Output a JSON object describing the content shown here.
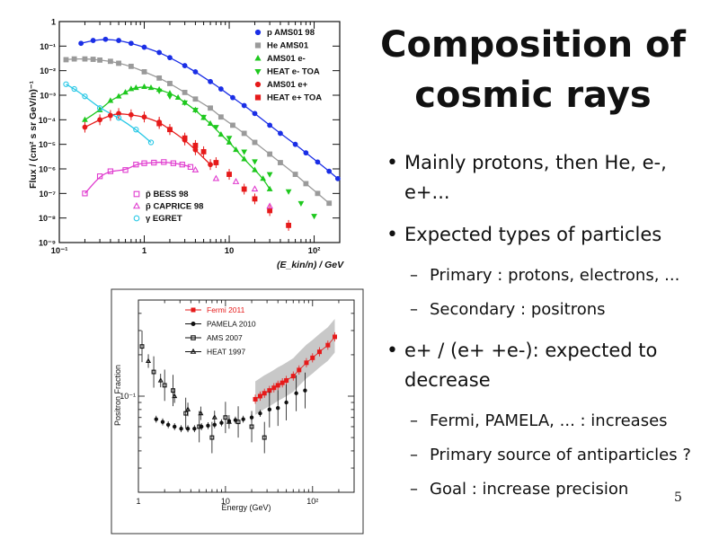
{
  "slide": {
    "title_line1": "Composition of",
    "title_line2": "cosmic rays",
    "number": "5",
    "bullets": [
      {
        "text": "Mainly protons, then He, e-, e+...",
        "sub": []
      },
      {
        "text": "Expected types of particles",
        "sub": [
          "Primary : protons, electrons, ...",
          "Secondary : positrons"
        ]
      },
      {
        "text": "e+ / (e+ +e-): expected to decrease",
        "sub": [
          "Fermi, PAMELA, ... : increases",
          "Primary source of antiparticles ?",
          "Goal : increase precision"
        ]
      }
    ]
  },
  "chart_data": [
    {
      "type": "scatter",
      "xlabel": "(E_kin/n) / GeV",
      "ylabel": "Flux / (cm² s sr GeV/n)⁻¹",
      "xscale": "log",
      "yscale": "log",
      "xlim": [
        0.1,
        200
      ],
      "ylim": [
        1e-09,
        1
      ],
      "x_ticks": [
        "10⁻¹",
        "1",
        "10",
        "10²"
      ],
      "y_ticks": [
        "1",
        "10⁻¹",
        "10⁻²",
        "10⁻³",
        "10⁻⁴",
        "10⁻⁵",
        "10⁻⁶",
        "10⁻⁷",
        "10⁻⁸",
        "10⁻⁹"
      ],
      "legend_placement": "top-right",
      "legend_lower_placement": "bottom-left",
      "series": [
        {
          "name": "p AMS01 98",
          "marker": "circle",
          "color": "#1a2ee6",
          "legend": "upper",
          "x": [
            0.18,
            0.25,
            0.35,
            0.5,
            0.7,
            1,
            1.5,
            2,
            3,
            4,
            6,
            8,
            11,
            15,
            20,
            30,
            40,
            60,
            80,
            110,
            150,
            190
          ],
          "y": [
            0.13,
            0.17,
            0.19,
            0.17,
            0.13,
            0.09,
            0.055,
            0.034,
            0.016,
            0.009,
            0.0036,
            0.0018,
            0.0008,
            0.00038,
            0.00018,
            6e-05,
            2.8e-05,
            1e-05,
            4.5e-06,
            1.9e-06,
            8e-07,
            4e-07
          ]
        },
        {
          "name": "He AMS01",
          "marker": "square",
          "color": "#9a9a9a",
          "legend": "upper",
          "x": [
            0.12,
            0.15,
            0.2,
            0.25,
            0.3,
            0.4,
            0.5,
            0.7,
            1,
            1.5,
            2,
            3,
            4,
            6,
            8,
            11,
            15,
            20,
            30,
            40,
            60,
            80,
            110,
            150
          ],
          "y": [
            0.028,
            0.03,
            0.03,
            0.029,
            0.027,
            0.024,
            0.02,
            0.015,
            0.009,
            0.005,
            0.003,
            0.0013,
            0.0007,
            0.0003,
            0.00013,
            6e-05,
            2.8e-05,
            1.2e-05,
            4e-06,
            1.8e-06,
            6e-07,
            2.5e-07,
            1e-07,
            4e-08
          ]
        },
        {
          "name": "AMS01 e-",
          "marker": "triangle-up",
          "color": "#1ec81e",
          "legend": "upper",
          "x": [
            0.2,
            0.3,
            0.4,
            0.5,
            0.6,
            0.7,
            0.8,
            1,
            1.2,
            1.5,
            2,
            2.5,
            3,
            4,
            5,
            6,
            8,
            10,
            12,
            15,
            20,
            25,
            30
          ],
          "y": [
            0.0001,
            0.00025,
            0.0006,
            0.0009,
            0.0013,
            0.0018,
            0.002,
            0.0022,
            0.002,
            0.0017,
            0.0012,
            0.0008,
            0.0005,
            0.00025,
            0.00012,
            7e-05,
            2.5e-05,
            1.2e-05,
            6e-06,
            2.5e-06,
            9e-07,
            4e-07,
            1.5e-07
          ]
        },
        {
          "name": "HEAT e- TOA",
          "marker": "triangle-down",
          "color": "#1ec81e",
          "legend": "upper",
          "x": [
            1.5,
            2,
            3,
            4,
            5,
            7,
            10,
            15,
            20,
            30,
            50,
            70,
            100
          ],
          "y": [
            0.0015,
            0.0009,
            0.0005,
            0.00025,
            0.00013,
            5e-05,
            1.8e-05,
            5e-06,
            2e-06,
            6e-07,
            1.2e-07,
            4e-08,
            1.2e-08
          ]
        },
        {
          "name": "AMS01 e+",
          "marker": "circle",
          "color": "#e61a1a",
          "legend": "upper",
          "x": [
            0.2,
            0.3,
            0.4,
            0.5,
            0.7,
            1,
            1.5,
            2,
            3,
            4,
            6
          ],
          "y": [
            5e-05,
            0.0001,
            0.00015,
            0.00018,
            0.00016,
            0.00013,
            8e-05,
            4e-05,
            1.5e-05,
            6e-06,
            1.5e-06
          ]
        },
        {
          "name": "HEAT e+ TOA",
          "marker": "square",
          "color": "#e61a1a",
          "legend": "upper",
          "x": [
            1.5,
            2,
            3,
            4,
            5,
            7,
            10,
            15,
            20,
            30,
            50
          ],
          "y": [
            7e-05,
            4e-05,
            1.8e-05,
            9e-06,
            5e-06,
            1.8e-06,
            6e-07,
            1.5e-07,
            6e-08,
            2e-08,
            5e-09
          ]
        },
        {
          "name": "p̄ BESS 98",
          "marker": "square-open",
          "color": "#e03ccf",
          "legend": "lower",
          "x": [
            0.2,
            0.3,
            0.4,
            0.6,
            0.8,
            1,
            1.3,
            1.7,
            2.2,
            2.8,
            3.5
          ],
          "y": [
            1e-07,
            5e-07,
            8e-07,
            9e-07,
            1.5e-06,
            1.7e-06,
            1.8e-06,
            1.9e-06,
            1.7e-06,
            1.5e-06,
            1.2e-06
          ]
        },
        {
          "name": "p̄ CAPRICE 98",
          "marker": "triangle-open",
          "color": "#e03ccf",
          "legend": "lower",
          "x": [
            4,
            7,
            12,
            20,
            30
          ],
          "y": [
            9e-07,
            4e-07,
            3e-07,
            1.5e-07,
            3e-08
          ]
        },
        {
          "name": "γ EGRET",
          "marker": "circle-open",
          "color": "#28c8e6",
          "legend": "lower",
          "x": [
            0.12,
            0.15,
            0.2,
            0.3,
            0.5,
            0.8,
            1.2
          ],
          "y": [
            0.0028,
            0.0018,
            0.0009,
            0.0003,
            0.00012,
            4e-05,
            1.2e-05
          ]
        }
      ]
    },
    {
      "type": "scatter",
      "xlabel": "Energy (GeV)",
      "ylabel": "Positron Fraction",
      "xscale": "log",
      "yscale": "log",
      "xlim": [
        1,
        300
      ],
      "ylim": [
        0.02,
        0.5
      ],
      "x_ticks": [
        "1",
        "10",
        "10²"
      ],
      "y_ticks": [
        "10⁻¹"
      ],
      "legend_placement": "top-left",
      "series": [
        {
          "name": "Fermi 2011",
          "marker": "square",
          "color": "#e61a1a",
          "x": [
            22,
            25,
            28,
            32,
            36,
            40,
            45,
            50,
            60,
            70,
            85,
            100,
            120,
            150,
            180
          ],
          "y": [
            0.095,
            0.1,
            0.105,
            0.11,
            0.115,
            0.12,
            0.125,
            0.13,
            0.14,
            0.155,
            0.175,
            0.19,
            0.21,
            0.235,
            0.27
          ]
        },
        {
          "name": "PAMELA 2010",
          "marker": "circle",
          "color": "#111111",
          "x": [
            1.6,
            1.9,
            2.2,
            2.6,
            3.1,
            3.7,
            4.4,
            5.3,
            6.3,
            7.5,
            9,
            11,
            13,
            16,
            20,
            25,
            32,
            40,
            50,
            65,
            82
          ],
          "y": [
            0.068,
            0.065,
            0.062,
            0.06,
            0.058,
            0.058,
            0.058,
            0.06,
            0.061,
            0.062,
            0.064,
            0.066,
            0.067,
            0.068,
            0.07,
            0.075,
            0.08,
            0.082,
            0.09,
            0.105,
            0.11
          ]
        },
        {
          "name": "AMS 2007",
          "marker": "square-open",
          "color": "#111111",
          "x": [
            1.1,
            1.5,
            2,
            2.5,
            3.5,
            5,
            7,
            10,
            14,
            20,
            28
          ],
          "y": [
            0.23,
            0.15,
            0.12,
            0.11,
            0.075,
            0.06,
            0.05,
            0.07,
            0.065,
            0.06,
            0.05
          ]
        },
        {
          "name": "HEAT 1997",
          "marker": "triangle-open",
          "color": "#111111",
          "x": [
            1.3,
            1.8,
            2.6,
            3.7,
            5.2,
            7.5,
            11
          ],
          "y": [
            0.18,
            0.13,
            0.1,
            0.08,
            0.075,
            0.07,
            0.065
          ]
        }
      ]
    }
  ]
}
